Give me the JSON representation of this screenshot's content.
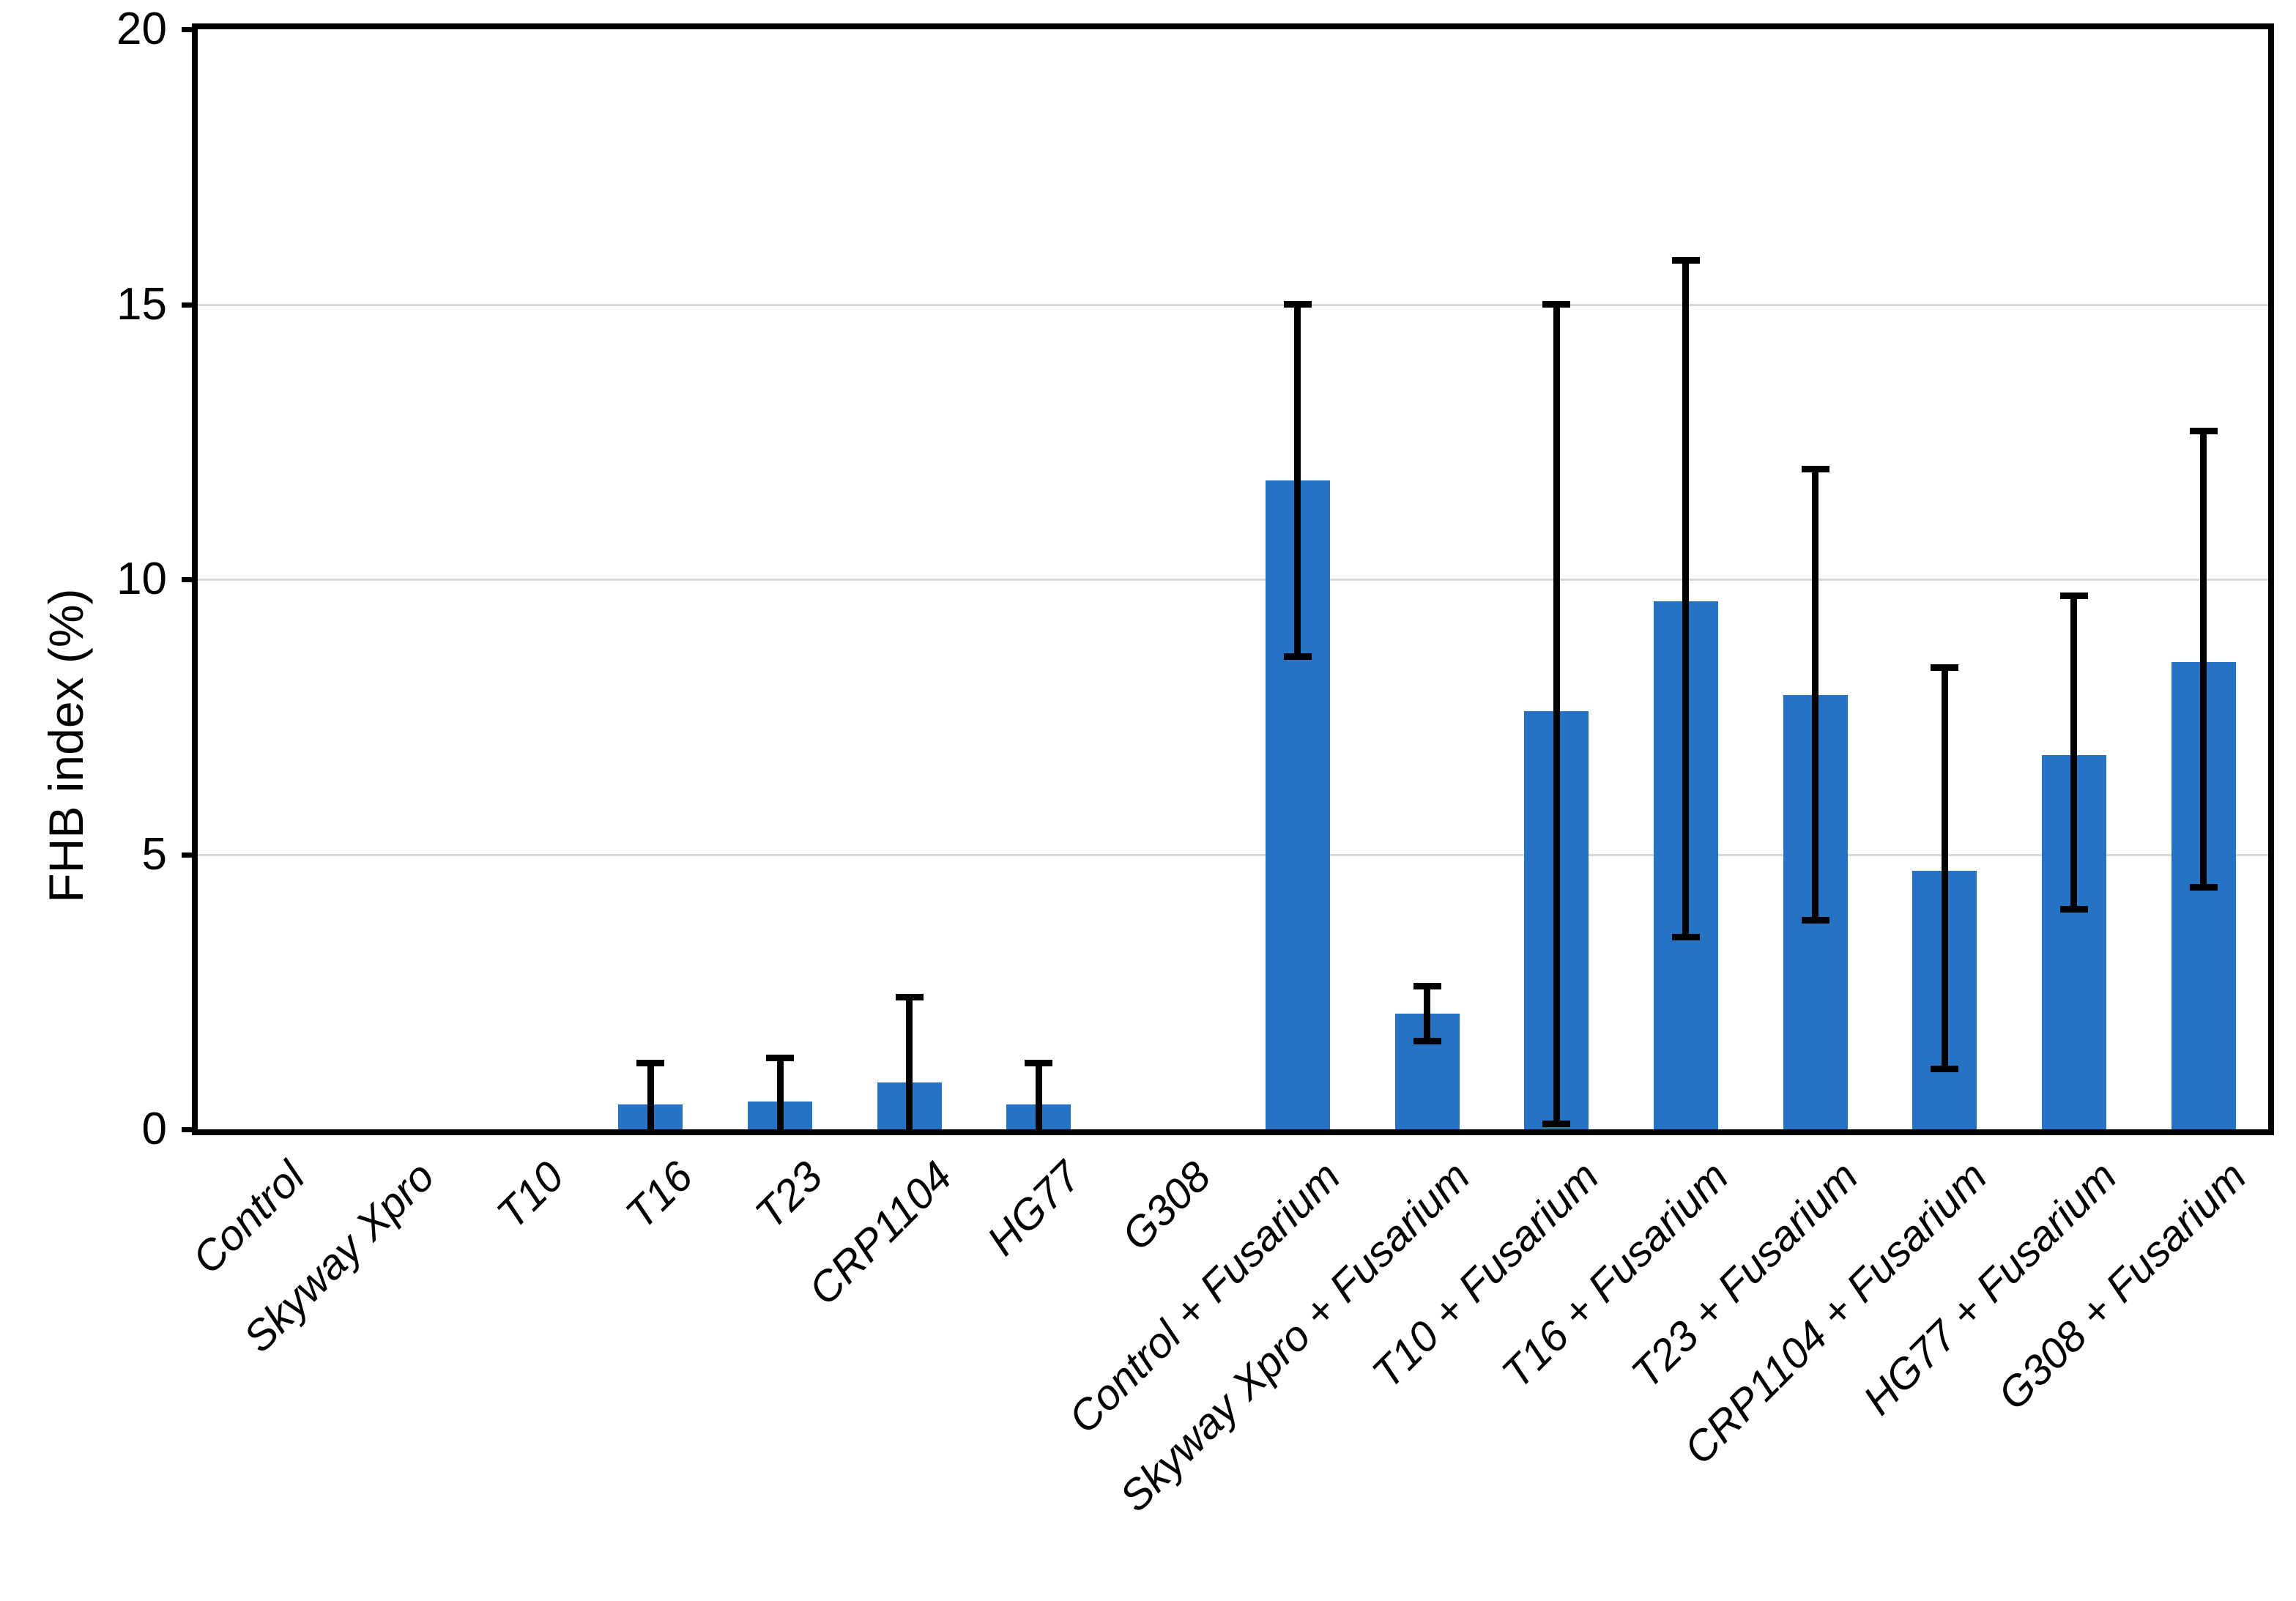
{
  "chart_data": {
    "type": "bar",
    "title": "",
    "xlabel": "",
    "ylabel": "FHB index (%)",
    "ylim": [
      0,
      20
    ],
    "yticks": [
      0,
      5,
      10,
      15,
      20
    ],
    "grid": "horizontal",
    "gridline_color": "#d9d9d9",
    "legend_position": "none",
    "bar_color": "#2473c4",
    "error_bar_color": "#000000",
    "categories": [
      "Control",
      "Skyway Xpro",
      "T10",
      "T16",
      "T23",
      "CRP1104",
      "HG77",
      "G308",
      "Control + Fusarium",
      "Skyway Xpro + Fusarium",
      "T10 + Fusarium",
      "T16 + Fusarium",
      "T23 + Fusarium",
      "CRP1104 + Fusarium",
      "HG77 + Fusarium",
      "G308 + Fusarium"
    ],
    "series": [
      {
        "name": "FHB index (%)",
        "values": [
          0,
          0,
          0,
          0.45,
          0.5,
          0.85,
          0.45,
          0,
          11.8,
          2.1,
          7.6,
          9.6,
          7.9,
          4.7,
          6.8,
          8.5
        ]
      }
    ],
    "error_high": [
      null,
      null,
      null,
      1.2,
      1.3,
      2.4,
      1.2,
      null,
      15.0,
      2.6,
      15.0,
      15.8,
      12.0,
      8.4,
      9.7,
      12.7
    ],
    "error_low": [
      null,
      null,
      null,
      null,
      null,
      null,
      null,
      null,
      8.6,
      1.6,
      0.1,
      3.5,
      3.8,
      1.1,
      4.0,
      4.4
    ]
  }
}
